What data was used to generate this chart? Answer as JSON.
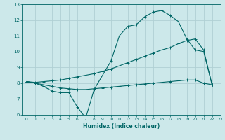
{
  "xlabel": "Humidex (Indice chaleur)",
  "ylabel": "",
  "bg_color": "#cce8ea",
  "grid_color": "#b0d0d4",
  "line_color": "#006666",
  "xlim": [
    -0.5,
    23
  ],
  "ylim": [
    6,
    13
  ],
  "yticks": [
    6,
    7,
    8,
    9,
    10,
    11,
    12,
    13
  ],
  "xticks": [
    0,
    1,
    2,
    3,
    4,
    5,
    6,
    7,
    8,
    9,
    10,
    11,
    12,
    13,
    14,
    15,
    16,
    17,
    18,
    19,
    20,
    21,
    22,
    23
  ],
  "line1_x": [
    0,
    1,
    2,
    3,
    4,
    5,
    6,
    7,
    8,
    9,
    10,
    11,
    12,
    13,
    14,
    15,
    16,
    17,
    18,
    19,
    20,
    21,
    22
  ],
  "line1_y": [
    8.1,
    8.0,
    7.8,
    7.5,
    7.4,
    7.4,
    6.5,
    5.8,
    7.6,
    8.5,
    9.4,
    11.0,
    11.6,
    11.7,
    12.2,
    12.5,
    12.6,
    12.3,
    11.9,
    10.8,
    10.1,
    10.0,
    7.9
  ],
  "line2_x": [
    0,
    1,
    2,
    3,
    4,
    5,
    6,
    7,
    8,
    9,
    10,
    11,
    12,
    13,
    14,
    15,
    16,
    17,
    18,
    19,
    20,
    21,
    22
  ],
  "line2_y": [
    8.1,
    8.05,
    8.1,
    8.15,
    8.2,
    8.3,
    8.4,
    8.5,
    8.6,
    8.75,
    8.9,
    9.1,
    9.3,
    9.5,
    9.7,
    9.9,
    10.1,
    10.25,
    10.5,
    10.7,
    10.8,
    10.1,
    7.9
  ],
  "line3_x": [
    0,
    1,
    2,
    3,
    4,
    5,
    6,
    7,
    8,
    9,
    10,
    11,
    12,
    13,
    14,
    15,
    16,
    17,
    18,
    19,
    20,
    21,
    22
  ],
  "line3_y": [
    8.1,
    8.0,
    7.9,
    7.8,
    7.7,
    7.65,
    7.6,
    7.6,
    7.65,
    7.7,
    7.75,
    7.8,
    7.85,
    7.9,
    7.95,
    8.0,
    8.05,
    8.1,
    8.15,
    8.2,
    8.2,
    8.0,
    7.9
  ]
}
